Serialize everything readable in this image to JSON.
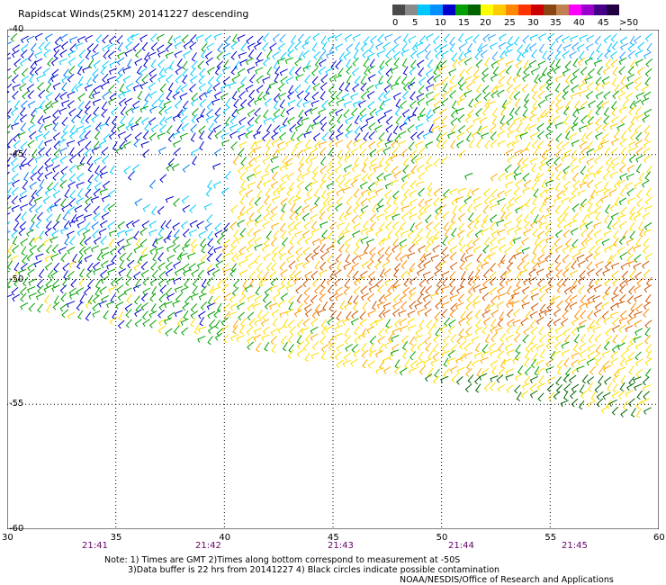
{
  "header": {
    "title": "Rapidscat Winds(25KM) 20141227 descending"
  },
  "legend": {
    "colors": [
      "#4a4a4a",
      "#8a8a8a",
      "#00c8ff",
      "#0090ff",
      "#0000cc",
      "#00a000",
      "#006400",
      "#ffff00",
      "#ffcc00",
      "#ff8800",
      "#ff3300",
      "#cc0000",
      "#8b4513",
      "#c08050",
      "#ff00ff",
      "#9900cc",
      "#440088",
      "#220044"
    ],
    "labels": [
      "0",
      "5",
      "10",
      "15",
      "20",
      "25",
      "30",
      "35",
      "40",
      "45",
      ">50 knots"
    ]
  },
  "map": {
    "lat_labels": [
      "-40",
      "-45",
      "-50",
      "-55",
      "-60"
    ],
    "lon_labels": [
      "30",
      "35",
      "40",
      "45",
      "50",
      "55",
      "60"
    ],
    "time_labels": [
      "21:41",
      "21:42",
      "21:43",
      "21:44",
      "21:45"
    ]
  },
  "footer": {
    "note_line1": "Note: 1) Times are GMT 2)Times along bottom correspond to measurement at -50S",
    "note_line2": "3)Data buffer is 22 hrs from 20141227 4) Black circles indicate possible contamination",
    "credit": "NOAA/NESDIS/Office of Research and Applications"
  }
}
